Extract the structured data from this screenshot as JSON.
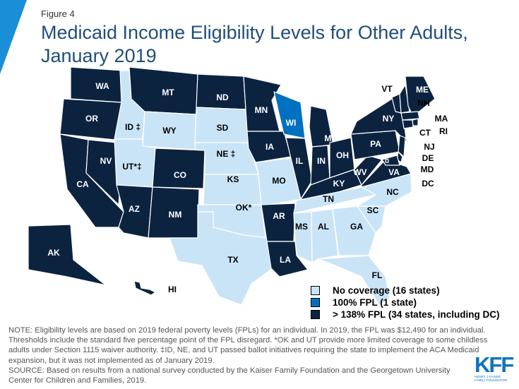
{
  "figure_label": "Figure 4",
  "title": "Medicaid Income Eligibility Levels for Other Adults, January 2019",
  "colors": {
    "no_coverage": "#c9e4f7",
    "fpl_100": "#0070c0",
    "fpl_138": "#0c2340",
    "accent": "#1a8fd8"
  },
  "legend": [
    {
      "category": "no_coverage",
      "label": "No coverage (16 states)"
    },
    {
      "category": "fpl_100",
      "label": "100% FPL (1 state)"
    },
    {
      "category": "fpl_138",
      "label": "> 138% FPL (34 states, including DC)"
    }
  ],
  "states": {
    "WA": {
      "label": "WA",
      "category": "fpl_138"
    },
    "OR": {
      "label": "OR",
      "category": "fpl_138"
    },
    "CA": {
      "label": "CA",
      "category": "fpl_138"
    },
    "NV": {
      "label": "NV",
      "category": "fpl_138"
    },
    "ID": {
      "label": "ID ‡",
      "category": "no_coverage"
    },
    "MT": {
      "label": "MT",
      "category": "fpl_138"
    },
    "WY": {
      "label": "WY",
      "category": "no_coverage"
    },
    "UT": {
      "label": "UT*‡",
      "category": "no_coverage"
    },
    "AZ": {
      "label": "AZ",
      "category": "fpl_138"
    },
    "CO": {
      "label": "CO",
      "category": "fpl_138"
    },
    "NM": {
      "label": "NM",
      "category": "fpl_138"
    },
    "ND": {
      "label": "ND",
      "category": "fpl_138"
    },
    "SD": {
      "label": "SD",
      "category": "no_coverage"
    },
    "NE": {
      "label": "NE ‡",
      "category": "no_coverage"
    },
    "KS": {
      "label": "KS",
      "category": "no_coverage"
    },
    "OK": {
      "label": "OK*",
      "category": "no_coverage"
    },
    "TX": {
      "label": "TX",
      "category": "no_coverage"
    },
    "MN": {
      "label": "MN",
      "category": "fpl_138"
    },
    "IA": {
      "label": "IA",
      "category": "fpl_138"
    },
    "MO": {
      "label": "MO",
      "category": "no_coverage"
    },
    "AR": {
      "label": "AR",
      "category": "fpl_138"
    },
    "LA": {
      "label": "LA",
      "category": "fpl_138"
    },
    "WI": {
      "label": "WI",
      "category": "fpl_100"
    },
    "IL": {
      "label": "IL",
      "category": "fpl_138"
    },
    "MI": {
      "label": "MI",
      "category": "fpl_138"
    },
    "IN": {
      "label": "IN",
      "category": "fpl_138"
    },
    "OH": {
      "label": "OH",
      "category": "fpl_138"
    },
    "KY": {
      "label": "KY",
      "category": "fpl_138"
    },
    "TN": {
      "label": "TN",
      "category": "no_coverage"
    },
    "MS": {
      "label": "MS",
      "category": "no_coverage"
    },
    "AL": {
      "label": "AL",
      "category": "no_coverage"
    },
    "GA": {
      "label": "GA",
      "category": "no_coverage"
    },
    "FL": {
      "label": "FL",
      "category": "no_coverage"
    },
    "SC": {
      "label": "SC",
      "category": "no_coverage"
    },
    "NC": {
      "label": "NC",
      "category": "no_coverage"
    },
    "VA": {
      "label": "VA",
      "category": "fpl_138"
    },
    "WV": {
      "label": "WV",
      "category": "fpl_138"
    },
    "PA": {
      "label": "PA",
      "category": "fpl_138"
    },
    "NY": {
      "label": "NY",
      "category": "fpl_138"
    },
    "VT": {
      "label": "VT",
      "category": "fpl_138"
    },
    "NH": {
      "label": "NH",
      "category": "fpl_138"
    },
    "ME": {
      "label": "ME",
      "category": "fpl_138"
    },
    "MA": {
      "label": "MA",
      "category": "fpl_138"
    },
    "RI": {
      "label": "RI",
      "category": "fpl_138"
    },
    "CT": {
      "label": "CT",
      "category": "fpl_138"
    },
    "NJ": {
      "label": "NJ",
      "category": "fpl_138"
    },
    "DE": {
      "label": "DE",
      "category": "fpl_138"
    },
    "MD": {
      "label": "MD",
      "category": "fpl_138"
    },
    "DC": {
      "label": "DC",
      "category": "fpl_138"
    },
    "AK": {
      "label": "AK",
      "category": "fpl_138"
    },
    "HI": {
      "label": "HI",
      "category": "fpl_138"
    }
  },
  "note": "NOTE: Eligibility levels are based on 2019 federal poverty levels (FPLs) for an individual. In 2019, the FPL was $12,490 for an individual. Thresholds include the standard five percentage point of the FPL disregard.  *OK and UT provide more limited coverage to some childless adults under Section 1115 waiver authority. ‡ID, NE, and UT passed ballot initiatives requiring the state to implement the ACA Medicaid expansion, but it was not implemented as of January 2019.",
  "source": "SOURCE: Based on results from a national survey conducted by the Kaiser Family Foundation and the Georgetown University Center for Children and Families, 2019.",
  "logo": {
    "mark": "KFF",
    "subtitle": "HENRY J KAISER FAMILY FOUNDATION"
  }
}
